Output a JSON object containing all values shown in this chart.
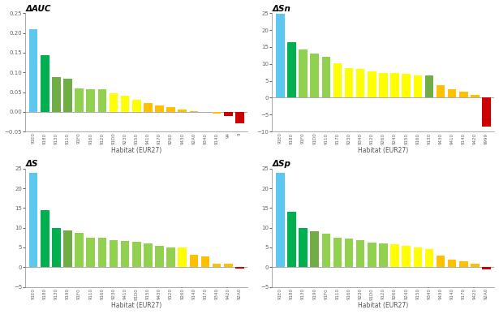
{
  "auc": {
    "title": "ΔAUC",
    "categories": [
      "91E0",
      "9180",
      "9130",
      "9110",
      "91F0",
      "9160",
      "9120",
      "91D0",
      "9230",
      "9150",
      "9410",
      "9170",
      "9260",
      "9430",
      "92A0",
      "9340",
      "9140",
      "94",
      "9"
    ],
    "values": [
      0.21,
      0.144,
      0.088,
      0.085,
      0.06,
      0.058,
      0.058,
      0.046,
      0.04,
      0.03,
      0.023,
      0.016,
      0.012,
      0.006,
      0.001,
      0.0,
      -0.005,
      -0.01,
      -0.03
    ],
    "colors": [
      "#5bc8f0",
      "#00b050",
      "#70ad47",
      "#70ad47",
      "#92d050",
      "#92d050",
      "#92d050",
      "#ffff00",
      "#ffff00",
      "#ffff00",
      "#ffc000",
      "#ffc000",
      "#ffc000",
      "#ffc000",
      "#ffc000",
      "#ffc000",
      "#ffc000",
      "#cc0000",
      "#cc0000"
    ],
    "ylim": [
      -0.05,
      0.25
    ],
    "yticks": [
      -0.05,
      0.0,
      0.05,
      0.1,
      0.15,
      0.2,
      0.25
    ]
  },
  "sn": {
    "title": "ΔSn",
    "categories": [
      "91E0",
      "9180",
      "91F0",
      "91D0",
      "9110",
      "9170",
      "9230",
      "9340",
      "9120",
      "9260",
      "9240",
      "9150",
      "9160",
      "9130",
      "9430",
      "9410",
      "9140",
      "9420",
      "9999"
    ],
    "values": [
      24.8,
      16.5,
      14.2,
      13.0,
      12.0,
      10.2,
      8.7,
      8.4,
      7.9,
      7.4,
      7.3,
      7.0,
      6.7,
      6.5,
      3.8,
      2.6,
      1.9,
      0.8,
      -8.5
    ],
    "colors": [
      "#5bc8f0",
      "#00b050",
      "#92d050",
      "#92d050",
      "#92d050",
      "#ffff00",
      "#ffff00",
      "#ffff00",
      "#ffff00",
      "#ffff00",
      "#ffff00",
      "#ffff00",
      "#ffff00",
      "#70ad47",
      "#ffc000",
      "#ffc000",
      "#ffc000",
      "#ffc000",
      "#cc0000"
    ],
    "ylim": [
      -10,
      25
    ],
    "yticks": [
      -10,
      -5,
      0,
      5,
      10,
      15,
      20,
      25
    ]
  },
  "s": {
    "title": "ΔS",
    "categories": [
      "91E0",
      "9180",
      "9130",
      "9190",
      "91F0",
      "9110",
      "9160",
      "9230",
      "9410",
      "91D0",
      "9150",
      "9430",
      "9120",
      "9260",
      "9140",
      "9170",
      "9340",
      "9420",
      "92A0"
    ],
    "values": [
      24.0,
      14.5,
      10.0,
      9.4,
      8.7,
      7.5,
      7.5,
      6.9,
      6.6,
      6.4,
      6.0,
      5.3,
      5.0,
      5.0,
      3.2,
      2.7,
      0.9,
      0.8,
      -0.3
    ],
    "colors": [
      "#5bc8f0",
      "#00b050",
      "#00b050",
      "#70ad47",
      "#92d050",
      "#92d050",
      "#92d050",
      "#92d050",
      "#92d050",
      "#92d050",
      "#92d050",
      "#92d050",
      "#92d050",
      "#ffff00",
      "#ffc000",
      "#ffc000",
      "#ffc000",
      "#ffc000",
      "#cc0000"
    ],
    "ylim": [
      -5,
      25
    ],
    "yticks": [
      -5,
      0,
      5,
      10,
      15,
      20,
      25
    ]
  },
  "sp": {
    "title": "ΔSp",
    "categories": [
      "91E0",
      "9180",
      "9130",
      "9190",
      "91F0",
      "9110",
      "9160",
      "9230",
      "91D0",
      "9120",
      "9260",
      "9240",
      "9150",
      "9340",
      "9430",
      "9140",
      "9170",
      "9420",
      "92A0"
    ],
    "values": [
      24.0,
      14.0,
      10.0,
      9.0,
      8.5,
      7.5,
      7.2,
      6.8,
      6.3,
      6.0,
      5.8,
      5.5,
      5.0,
      4.5,
      3.0,
      2.0,
      1.5,
      0.8,
      -0.5
    ],
    "colors": [
      "#5bc8f0",
      "#00b050",
      "#00b050",
      "#70ad47",
      "#92d050",
      "#92d050",
      "#92d050",
      "#92d050",
      "#92d050",
      "#92d050",
      "#ffff00",
      "#ffff00",
      "#ffff00",
      "#ffff00",
      "#ffc000",
      "#ffc000",
      "#ffc000",
      "#ffc000",
      "#cc0000"
    ],
    "ylim": [
      -5,
      25
    ],
    "yticks": [
      -5,
      0,
      5,
      10,
      15,
      20,
      25
    ]
  },
  "xlabel": "Habitat (EUR27)"
}
